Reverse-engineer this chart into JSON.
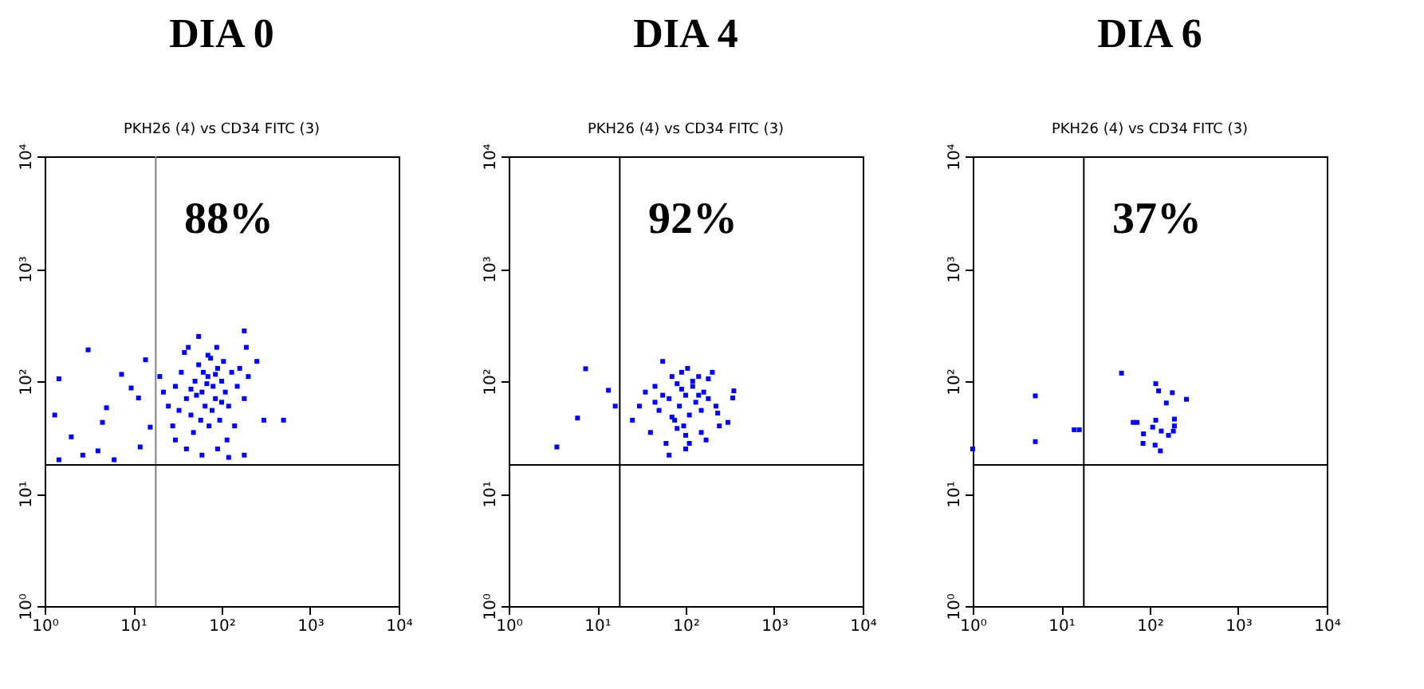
{
  "chart_data": [
    {
      "type": "scatter",
      "title": "DIA 0",
      "subtitle": "PKH26 (4) vs CD34 FITC (3)",
      "log": "xy",
      "marker": "square",
      "xlim": [
        1,
        10000
      ],
      "ylim": [
        1,
        10000
      ],
      "xticks": [
        {
          "value": 1,
          "label": "10⁰"
        },
        {
          "value": 10,
          "label": "10¹"
        },
        {
          "value": 100,
          "label": "10²"
        },
        {
          "value": 1000,
          "label": "10³"
        },
        {
          "value": 10000,
          "label": "10⁴"
        }
      ],
      "yticks": [
        {
          "value": 1,
          "label": "10⁰"
        },
        {
          "value": 10,
          "label": "10¹"
        },
        {
          "value": 100,
          "label": "10²"
        },
        {
          "value": 1000,
          "label": "10³"
        },
        {
          "value": 10000,
          "label": "10⁴"
        }
      ],
      "ref_lines": [
        {
          "axis": "x",
          "value": 18,
          "color": "#808080"
        },
        {
          "axis": "y",
          "value": 18,
          "color": "#000000"
        }
      ],
      "annotations": [
        "88%"
      ],
      "series": [
        {
          "color": "#0000ff",
          "x": [
            25,
            30,
            35,
            40,
            45,
            50,
            55,
            60,
            65,
            70,
            75,
            80,
            85,
            90,
            100,
            110,
            120,
            130,
            150,
            180,
            200,
            250,
            28,
            33,
            38,
            42,
            48,
            52,
            58,
            62,
            68,
            72,
            78,
            88,
            95,
            105,
            115,
            140,
            160,
            190,
            22,
            20,
            40,
            60,
            90,
            120,
            180,
            55,
            300,
            500,
            180,
            70,
            45,
            85,
            100,
            30,
            1.45,
            3.1,
            1.3,
            2,
            2.7,
            5,
            7.4,
            9.5,
            11.5,
            13.8,
            15.6,
            6.1,
            1.45,
            4,
            12,
            4.5
          ],
          "values": [
            60,
            90,
            120,
            70,
            50,
            100,
            140,
            80,
            60,
            110,
            160,
            90,
            70,
            130,
            100,
            80,
            60,
            120,
            90,
            70,
            110,
            150,
            40,
            55,
            180,
            200,
            35,
            75,
            45,
            120,
            95,
            40,
            55,
            200,
            45,
            150,
            30,
            40,
            130,
            200,
            80,
            110,
            25,
            22,
            25,
            21,
            22,
            250,
            45,
            45,
            280,
            170,
            85,
            115,
            65,
            30,
            105,
            190,
            50,
            32,
            22,
            58,
            115,
            87,
            71,
            155,
            39,
            20,
            20,
            24,
            26,
            43
          ]
        }
      ]
    },
    {
      "type": "scatter",
      "title": "DIA  4",
      "subtitle": "PKH26 (4) vs CD34 FITC (3)",
      "log": "xy",
      "marker": "square",
      "xlim": [
        1,
        10000
      ],
      "ylim": [
        1,
        10000
      ],
      "xticks": [
        {
          "value": 1,
          "label": "10⁰"
        },
        {
          "value": 10,
          "label": "10¹"
        },
        {
          "value": 100,
          "label": "10²"
        },
        {
          "value": 1000,
          "label": "10³"
        },
        {
          "value": 10000,
          "label": "10⁴"
        }
      ],
      "yticks": [
        {
          "value": 1,
          "label": "10⁰"
        },
        {
          "value": 10,
          "label": "10¹"
        },
        {
          "value": 100,
          "label": "10²"
        },
        {
          "value": 1000,
          "label": "10³"
        },
        {
          "value": 10000,
          "label": "10⁴"
        }
      ],
      "ref_lines": [
        {
          "axis": "x",
          "value": 18,
          "color": "#000000"
        },
        {
          "axis": "y",
          "value": 18,
          "color": "#000000"
        }
      ],
      "annotations": [
        "92%"
      ],
      "series": [
        {
          "color": "#0000ff",
          "x": [
            3.5,
            7.4,
            6,
            13.4,
            16,
            340,
            350,
            300,
            25,
            30,
            35,
            40,
            45,
            50,
            55,
            60,
            65,
            70,
            75,
            80,
            85,
            90,
            95,
            100,
            105,
            110,
            120,
            130,
            140,
            150,
            160,
            170,
            180,
            200,
            220,
            240,
            65,
            80,
            100,
            120,
            150,
            45,
            70,
            90,
            110,
            140,
            55,
            100,
            180,
            230
          ],
          "values": [
            26,
            129,
            47,
            83,
            60,
            71,
            82,
            43,
            45,
            60,
            80,
            35,
            90,
            55,
            150,
            28,
            70,
            110,
            45,
            95,
            60,
            120,
            40,
            75,
            130,
            50,
            90,
            65,
            110,
            55,
            80,
            30,
            70,
            120,
            60,
            40,
            22,
            38,
            33,
            100,
            35,
            65,
            48,
            85,
            28,
            75,
            75,
            25,
            105,
            52
          ]
        }
      ]
    },
    {
      "type": "scatter",
      "title": "DIA  6",
      "subtitle": "PKH26 (4) vs CD34 FITC (3)",
      "log": "xy",
      "marker": "square",
      "xlim": [
        1,
        10000
      ],
      "ylim": [
        1,
        10000
      ],
      "xticks": [
        {
          "value": 1,
          "label": "10⁰"
        },
        {
          "value": 10,
          "label": "10¹"
        },
        {
          "value": 100,
          "label": "10²"
        },
        {
          "value": 1000,
          "label": "10³"
        },
        {
          "value": 10000,
          "label": "10⁴"
        }
      ],
      "yticks": [
        {
          "value": 1,
          "label": "10⁰"
        },
        {
          "value": 10,
          "label": "10¹"
        },
        {
          "value": 100,
          "label": "10²"
        },
        {
          "value": 1000,
          "label": "10³"
        },
        {
          "value": 10000,
          "label": "10⁴"
        }
      ],
      "ref_lines": [
        {
          "axis": "x",
          "value": 18,
          "color": "#000000"
        },
        {
          "axis": "y",
          "value": 18,
          "color": "#000000"
        }
      ],
      "annotations": [
        "37%"
      ],
      "series": [
        {
          "color": "#0000ff",
          "x": [
            1,
            5.1,
            5.1,
            14,
            16,
            48,
            117,
            126,
            180,
            154,
            260,
            65,
            72,
            117,
            108,
            135,
            190,
            190,
            185,
            163,
            85,
            84,
            115,
            132
          ],
          "values": [
            25,
            74,
            29,
            37,
            37,
            118,
            95,
            82,
            79,
            64,
            69,
            43,
            43,
            45,
            39,
            36,
            46,
            40,
            36,
            33,
            34,
            28,
            27,
            24
          ]
        }
      ]
    }
  ]
}
